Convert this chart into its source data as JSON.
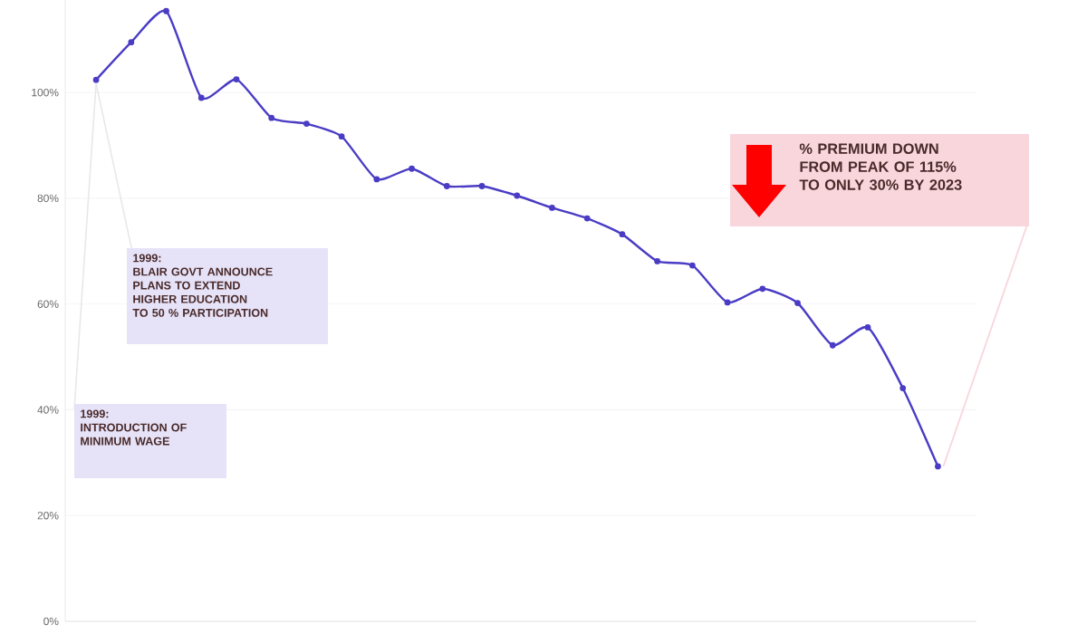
{
  "chart_data": {
    "type": "line",
    "categories": [
      null,
      null,
      null,
      null,
      null,
      null,
      null,
      null,
      null,
      null,
      null,
      null,
      null,
      null,
      null,
      null,
      null,
      null,
      null,
      null,
      null,
      null,
      null,
      null,
      null
    ],
    "series": [
      {
        "color": "#4a3cc4",
        "values": [
          102.4,
          109.5,
          115.4,
          99,
          102.5,
          95.2,
          94.1,
          91.7,
          83.6,
          85.6,
          82.3,
          82.3,
          80.5,
          78.2,
          76.2,
          73.2,
          68.1,
          67.3,
          60.3,
          62.9,
          60.2,
          52.2,
          55.6,
          44.1,
          29.3
        ]
      }
    ],
    "ylim": [
      0,
      117.5
    ],
    "yticks": [
      {
        "value": 0,
        "label": "0%"
      },
      {
        "value": 20,
        "label": "20%"
      },
      {
        "value": 40,
        "label": "40%"
      },
      {
        "value": 60,
        "label": "60%"
      },
      {
        "value": 80,
        "label": "80%"
      },
      {
        "value": 100,
        "label": "100%"
      }
    ],
    "grid": "y",
    "tick_labels": "y",
    "marker": "circle",
    "line_style": "solid",
    "annotations": [
      "1999:\nBLAIR GOVT ANNOUNCE\nPLANS TO EXTEND\nHIGHER EDUCATION\nTO 50 % PARTICIPATION",
      "1999:\nINTRODUCTION OF\nMINIMUM WAGE",
      "% PREMIUM DOWN\nFROM PEAK OF 115%\nTO ONLY 30% BY 2023"
    ]
  }
}
